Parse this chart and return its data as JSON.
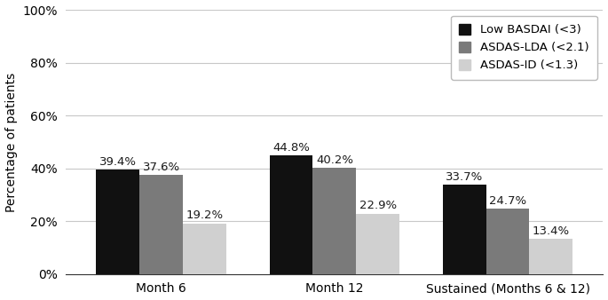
{
  "groups": [
    "Month 6",
    "Month 12",
    "Sustained (Months 6 & 12)"
  ],
  "series": [
    {
      "label": "Low BASDAI (<3)",
      "color": "#111111",
      "values": [
        39.4,
        44.8,
        33.7
      ]
    },
    {
      "label": "ASDAS-LDA (<2.1)",
      "color": "#7a7a7a",
      "values": [
        37.6,
        40.2,
        24.7
      ]
    },
    {
      "label": "ASDAS-ID (<1.3)",
      "color": "#d0d0d0",
      "values": [
        19.2,
        22.9,
        13.4
      ]
    }
  ],
  "ylabel": "Percentage of patients",
  "ylim": [
    0,
    100
  ],
  "yticks": [
    0,
    20,
    40,
    60,
    80,
    100
  ],
  "ytick_labels": [
    "0%",
    "20%",
    "40%",
    "60%",
    "80%",
    "100%"
  ],
  "bar_width": 0.25,
  "background_color": "#ffffff",
  "grid_color": "#c8c8c8",
  "label_fontsize": 9.5,
  "axis_fontsize": 10,
  "tick_fontsize": 10
}
